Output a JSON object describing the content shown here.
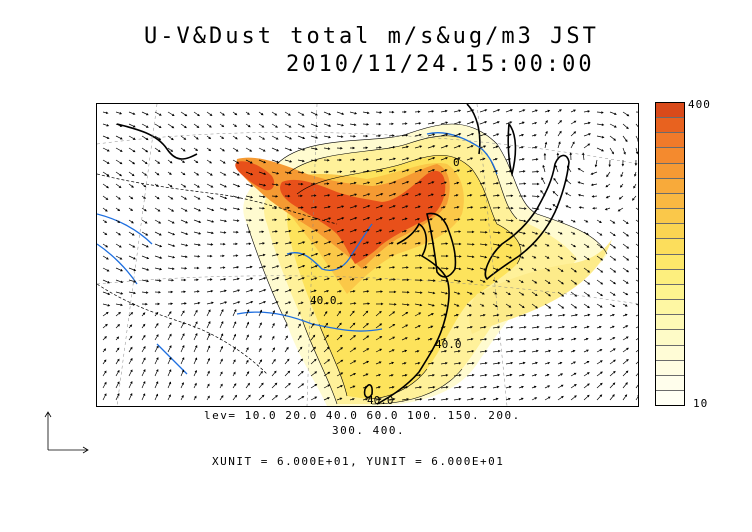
{
  "title": {
    "line1": "U-V&Dust total m/s&ug/m3 JST",
    "line2": "2010/11/24.15:00:00"
  },
  "colorbar": {
    "max_label": "400",
    "min_label": "10",
    "colors": [
      "#d94a1a",
      "#e8621f",
      "#f07a2a",
      "#f48a2e",
      "#f69a34",
      "#f8aa3a",
      "#f9b842",
      "#fac84a",
      "#fbd452",
      "#fcde5c",
      "#fde86a",
      "#fdef7e",
      "#fef48f",
      "#fef7a3",
      "#fef9b6",
      "#fefbc7",
      "#fffcd6",
      "#fffde2",
      "#fffeec",
      "#fffff4"
    ]
  },
  "contour_levels": {
    "line1": "lev= 10.0 20.0 40.0 60.0 100. 150. 200.",
    "line2": "300. 400."
  },
  "units": "XUNIT = 6.000E+01, YUNIT = 6.000E+01",
  "map_labels": [
    "40.0",
    "40.0",
    "40.0",
    "0"
  ],
  "colors": {
    "coastline": "#000000",
    "rivers": "#1e6fe0",
    "dust_peak": "#e8501a",
    "dust_low": "#fff6b8"
  }
}
